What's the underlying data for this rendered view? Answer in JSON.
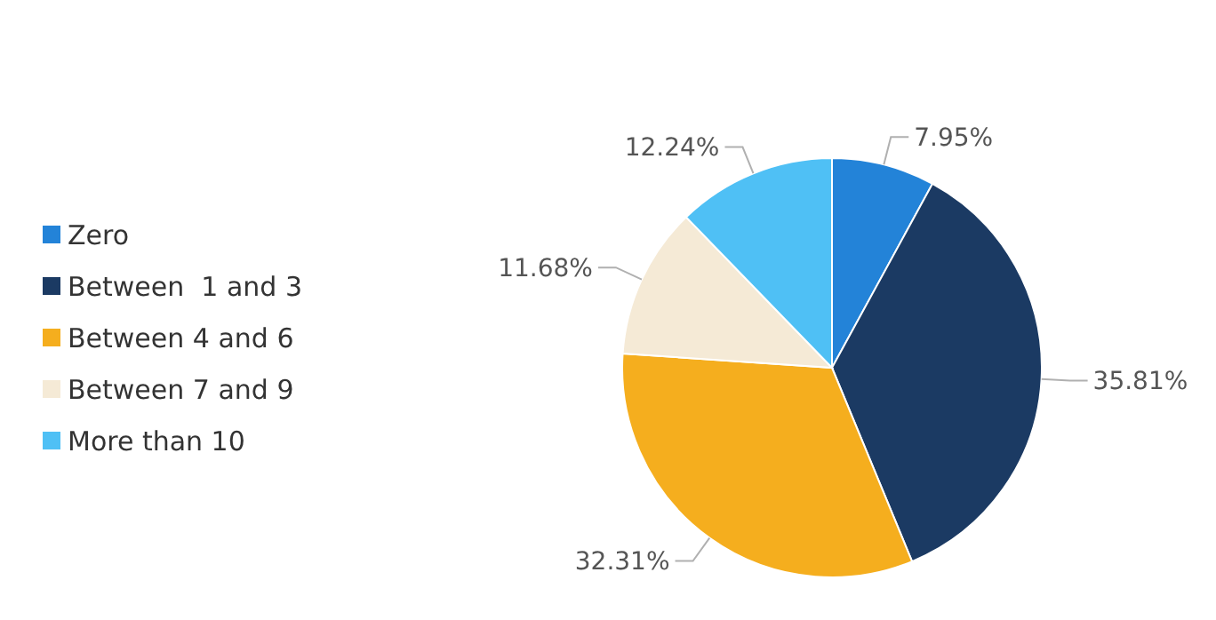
{
  "chart_data": {
    "type": "pie",
    "categories": [
      "Zero",
      "Between  1 and 3",
      "Between 4 and 6",
      "Between 7 and 9",
      "More than 10"
    ],
    "values": [
      7.95,
      35.81,
      32.31,
      11.68,
      12.24
    ],
    "colors": [
      "#2383d8",
      "#1b3a63",
      "#f5ae1e",
      "#f5ead6",
      "#4fc0f5"
    ],
    "value_labels": [
      "7.95%",
      "35.81%",
      "32.31%",
      "11.68%",
      "12.24%"
    ],
    "legend": "left"
  }
}
